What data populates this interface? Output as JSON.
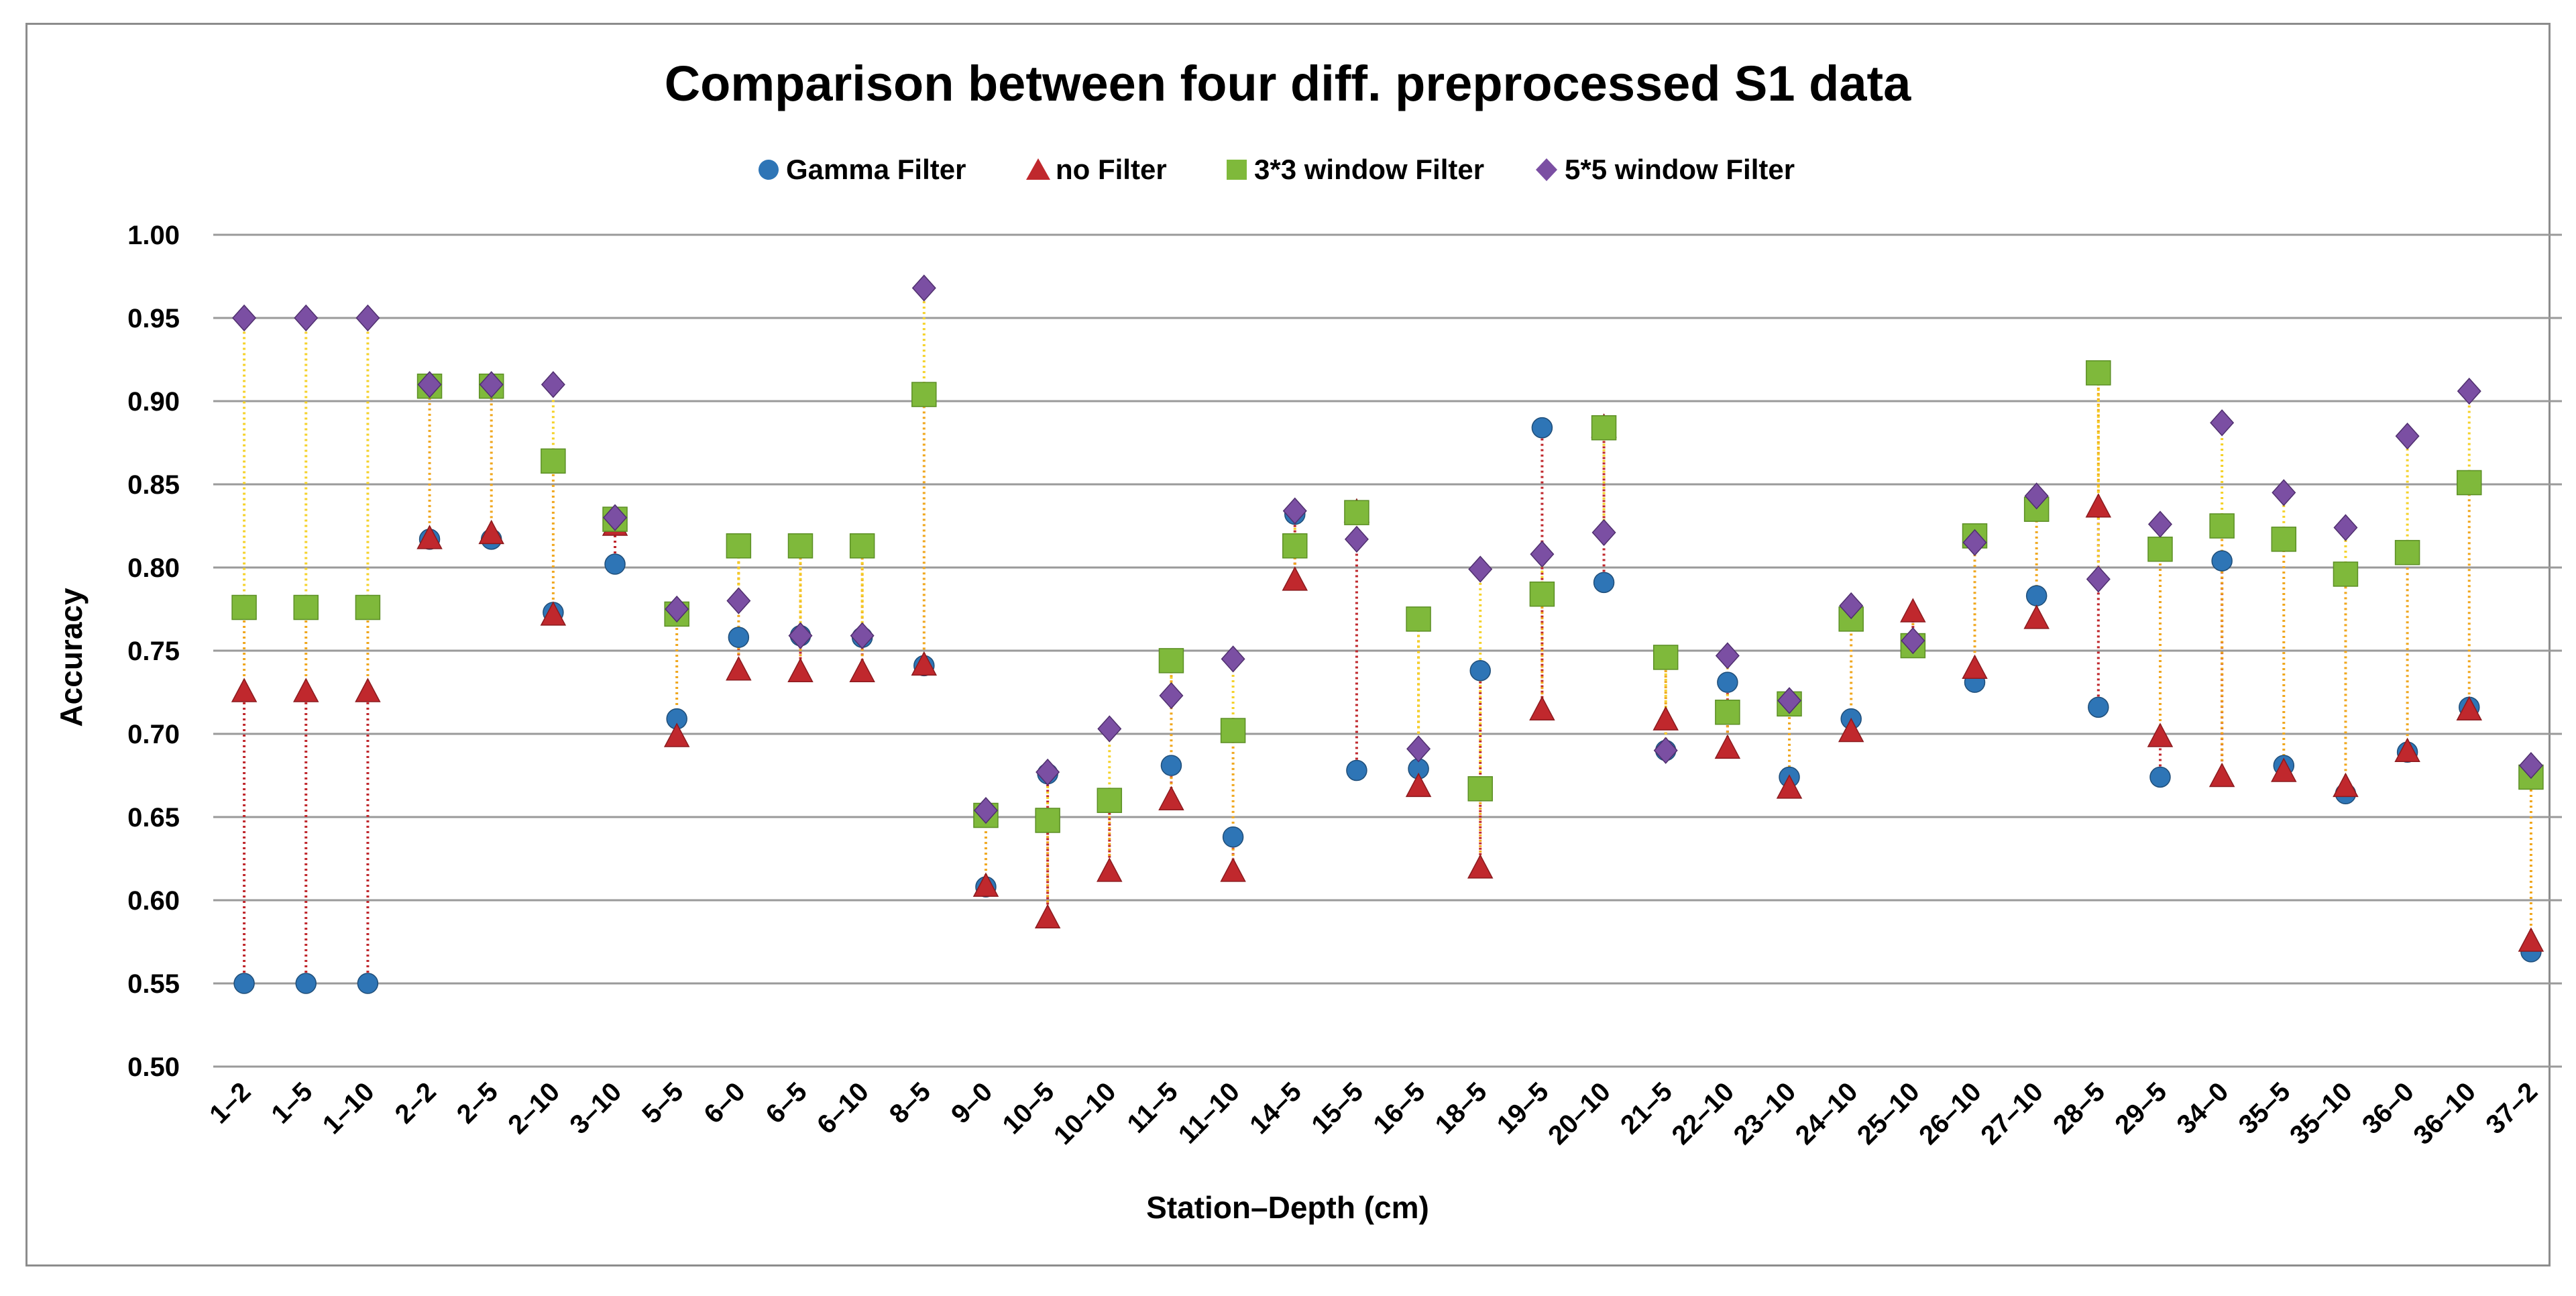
{
  "chart_data": {
    "type": "scatter",
    "title": "Comparison between four diff. preprocessed S1 data",
    "xlabel": "Station–Depth (cm)",
    "ylabel": "Accuracy",
    "ylim": [
      0.5,
      1.0
    ],
    "yticks": [
      "0.50",
      "0.55",
      "0.60",
      "0.65",
      "0.70",
      "0.75",
      "0.80",
      "0.85",
      "0.90",
      "0.95",
      "1.00"
    ],
    "grid": true,
    "legend_position": "top",
    "categories": [
      "1–2",
      "1–5",
      "1–10",
      "2–2",
      "2–5",
      "2–10",
      "3–10",
      "5–5",
      "6–0",
      "6–5",
      "6–10",
      "8–5",
      "9–0",
      "10–5",
      "10–10",
      "11–5",
      "11–10",
      "14–5",
      "15–5",
      "16–5",
      "18–5",
      "19–5",
      "20–10",
      "21–5",
      "22–10",
      "23–10",
      "24–10",
      "25–10",
      "26–10",
      "27–10",
      "28–5",
      "29–5",
      "34–0",
      "35–5",
      "35–10",
      "36–0",
      "36–10",
      "37–2"
    ],
    "series": [
      {
        "name": "Gamma Filter",
        "marker": "circle",
        "color": "#2e75b6",
        "values": [
          0.55,
          0.55,
          0.55,
          0.817,
          0.817,
          0.773,
          0.802,
          0.709,
          0.758,
          0.759,
          0.758,
          0.741,
          0.608,
          0.676,
          0.659,
          0.681,
          0.638,
          0.832,
          0.678,
          0.679,
          0.738,
          0.884,
          0.791,
          0.69,
          0.731,
          0.674,
          0.709,
          0.754,
          0.731,
          0.783,
          0.716,
          0.674,
          0.804,
          0.681,
          0.664,
          0.689,
          0.716,
          0.569
        ]
      },
      {
        "name": "no Filter",
        "marker": "triangle",
        "color": "#c0282d",
        "values": [
          0.725,
          0.725,
          0.725,
          0.817,
          0.82,
          0.771,
          0.825,
          0.698,
          0.738,
          0.737,
          0.737,
          0.741,
          0.608,
          0.589,
          0.617,
          0.66,
          0.617,
          0.792,
          0.833,
          0.668,
          0.619,
          0.714,
          0.884,
          0.708,
          0.691,
          0.667,
          0.701,
          0.773,
          0.739,
          0.769,
          0.836,
          0.698,
          0.674,
          0.677,
          0.668,
          0.689,
          0.714,
          0.575
        ]
      },
      {
        "name": "3*3 window Filter",
        "marker": "square",
        "color": "#7fb93b",
        "values": [
          0.776,
          0.776,
          0.776,
          0.909,
          0.909,
          0.864,
          0.829,
          0.772,
          0.813,
          0.813,
          0.813,
          0.904,
          0.651,
          0.648,
          0.66,
          0.744,
          0.702,
          0.813,
          0.833,
          0.769,
          0.667,
          0.784,
          0.884,
          0.746,
          0.713,
          0.718,
          0.769,
          0.753,
          0.819,
          0.835,
          0.917,
          0.811,
          0.825,
          0.817,
          0.796,
          0.809,
          0.851,
          0.674
        ]
      },
      {
        "name": "5*5 window Filter",
        "marker": "diamond",
        "color": "#7b4fa3",
        "values": [
          0.95,
          0.95,
          0.95,
          0.91,
          0.91,
          0.91,
          0.83,
          0.775,
          0.78,
          0.759,
          0.759,
          0.968,
          0.654,
          0.677,
          0.703,
          0.723,
          0.745,
          0.834,
          0.817,
          0.691,
          0.799,
          0.808,
          0.821,
          0.69,
          0.747,
          0.72,
          0.777,
          0.756,
          0.815,
          0.843,
          0.793,
          0.826,
          0.887,
          0.845,
          0.824,
          0.879,
          0.906,
          0.681
        ]
      }
    ],
    "drop_lines": [
      {
        "from_series": 0,
        "to_series": 1,
        "color": "#c0282d",
        "style": "dotted"
      },
      {
        "from_series": 1,
        "to_series": 2,
        "color": "#f0a71e",
        "style": "dotted"
      },
      {
        "from_series": 2,
        "to_series": 3,
        "color": "#f5d22a",
        "style": "dotted"
      }
    ]
  }
}
